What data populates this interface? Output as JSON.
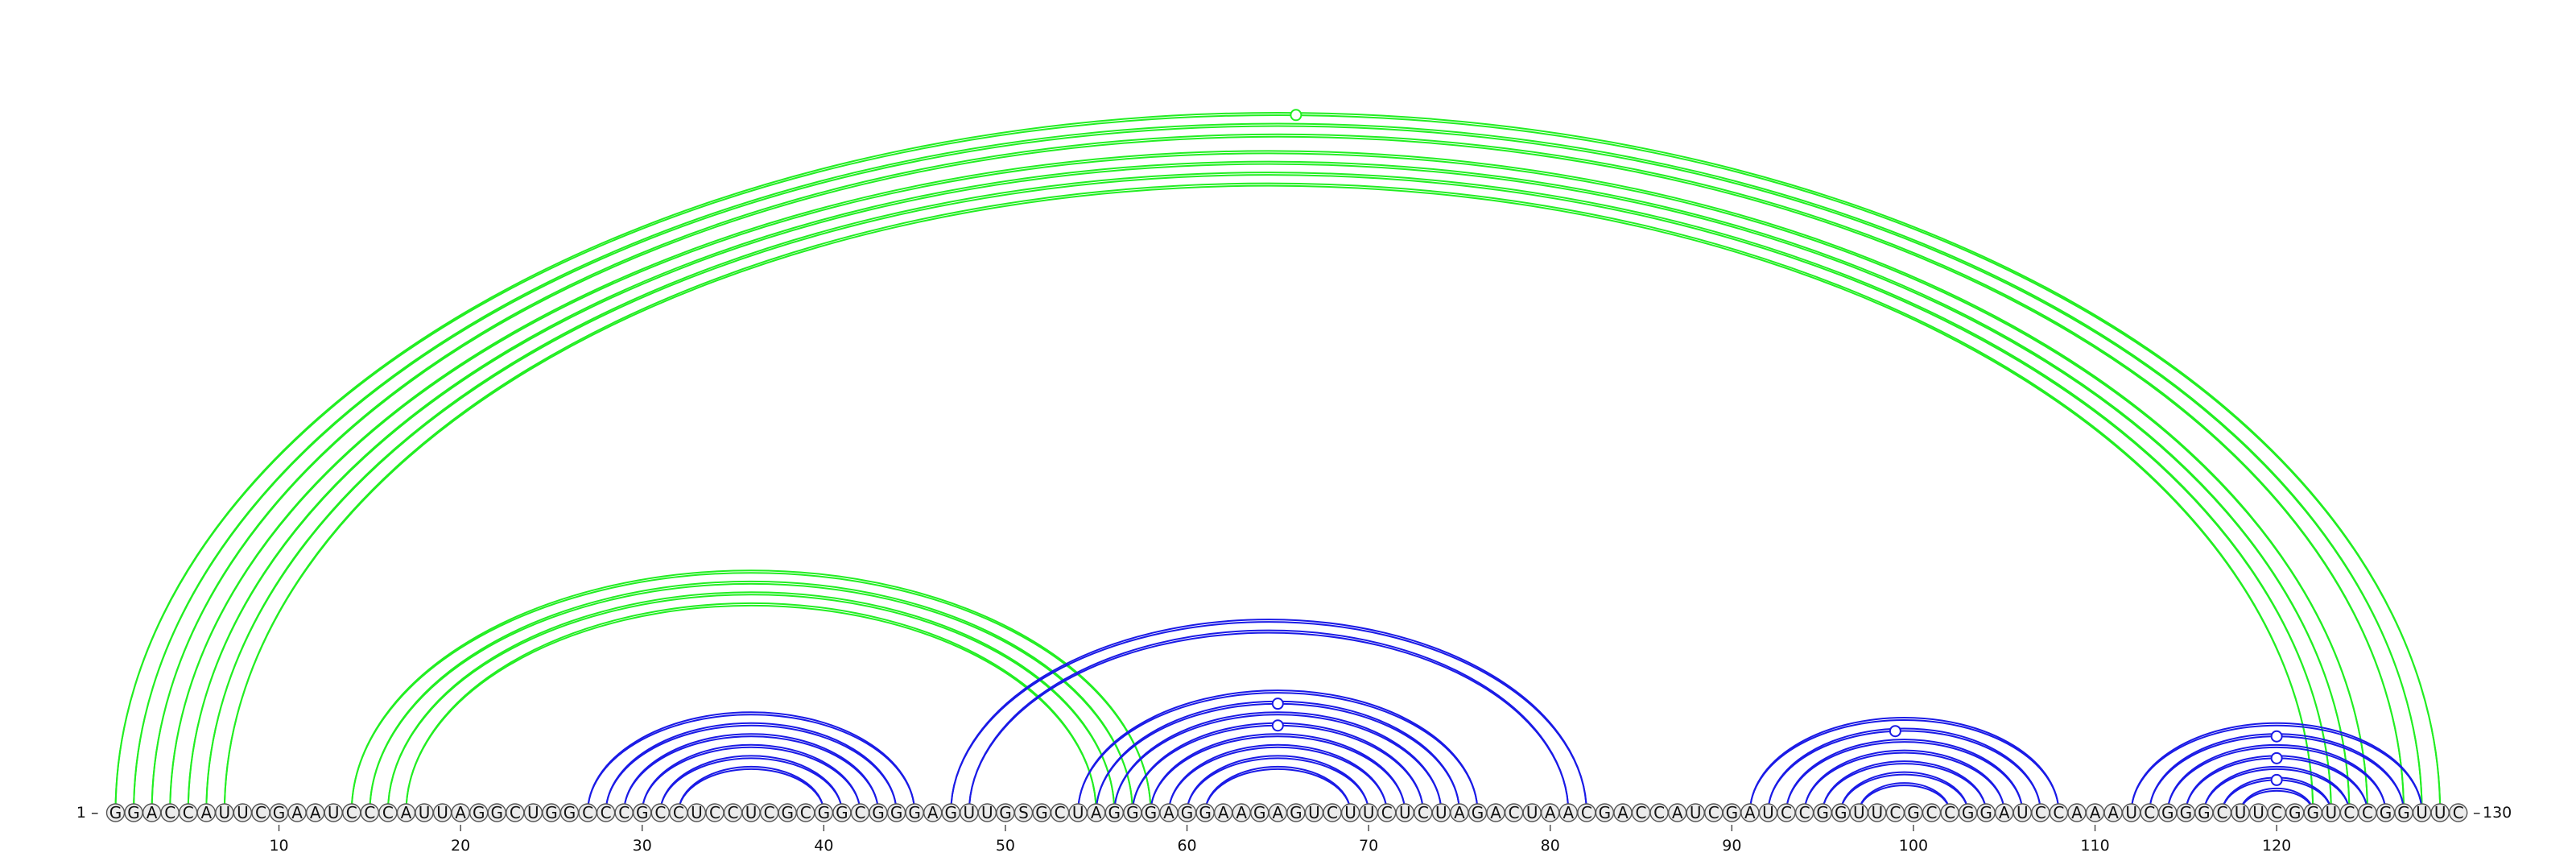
{
  "sequence": "GGACCAUUCGAAUCCCAUUAGGCUGGCCCGCCUCCUCGCGGCGGGAGUUGSGCUAGGGAGGAAGAGUCUUCUCUAGACUAACGACCAUCGAUCCGGUUCGCCGGAUCCAAAUCGGGCUUCGGUCCGGUUC",
  "start_label": "1",
  "end_label": "130",
  "ticks": [
    10,
    20,
    30,
    40,
    50,
    60,
    70,
    80,
    90,
    100,
    110,
    120
  ],
  "colors": {
    "green": "#22ee22",
    "blue": "#1a1ae6"
  },
  "chart_data": {
    "type": "arc-diagram",
    "sequence_length": 130,
    "helices": [
      {
        "color": "green",
        "i": 1,
        "j": 129,
        "length": 3,
        "markers": [
          66
        ]
      },
      {
        "color": "green",
        "i": 4,
        "j": 125,
        "length": 4,
        "markers": []
      },
      {
        "color": "green",
        "i": 14,
        "j": 58,
        "length": 4,
        "markers": []
      },
      {
        "color": "blue",
        "i": 27,
        "j": 45,
        "length": 6,
        "markers": []
      },
      {
        "color": "blue",
        "i": 47,
        "j": 82,
        "length": 2,
        "markers": []
      },
      {
        "color": "blue",
        "i": 54,
        "j": 76,
        "length": 8,
        "markers": [
          65,
          65
        ]
      },
      {
        "color": "blue",
        "i": 91,
        "j": 108,
        "length": 7,
        "markers": [
          99
        ]
      },
      {
        "color": "blue",
        "i": 112,
        "j": 128,
        "length": 7,
        "markers": [
          120,
          120,
          120
        ]
      }
    ]
  }
}
